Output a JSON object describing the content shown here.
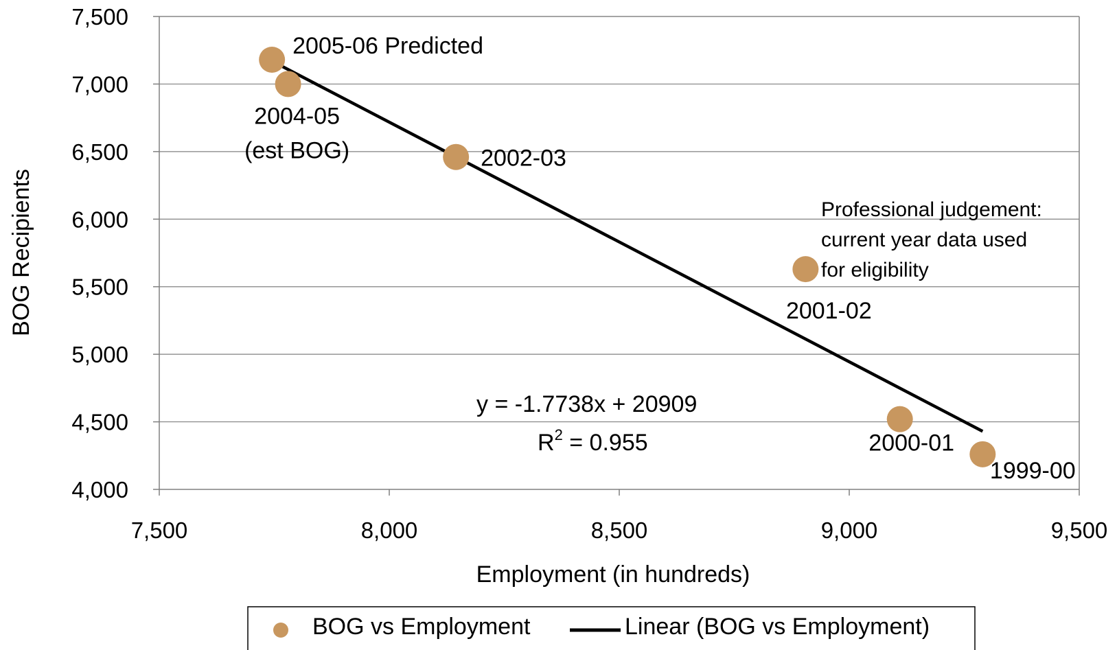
{
  "chart_data": {
    "type": "scatter",
    "xlabel": "Employment (in hundreds)",
    "ylabel": "BOG Recipients",
    "xlim": [
      7500,
      9500
    ],
    "ylim": [
      4000,
      7500
    ],
    "x_ticks": [
      "7,500",
      "8,000",
      "8,500",
      "9,000",
      "9,500"
    ],
    "y_ticks": [
      "7,500",
      "7,000",
      "6,500",
      "6,000",
      "5,500",
      "5,000",
      "4,500",
      "4,000"
    ],
    "grid": "horizontal",
    "marker_color": "#C8975F",
    "line_color": "#000000",
    "series": [
      {
        "name": "BOG vs Employment",
        "points": [
          {
            "x": 7745,
            "y": 7180,
            "label": "2005-06 Predicted"
          },
          {
            "x": 7780,
            "y": 7000,
            "label": "2004-05 (est BOG)",
            "label_lines": [
              "2004-05",
              "(est BOG)"
            ]
          },
          {
            "x": 8145,
            "y": 6460,
            "label": "2002-03"
          },
          {
            "x": 8905,
            "y": 5630,
            "label": "2001-02"
          },
          {
            "x": 9110,
            "y": 4520,
            "label": "2000-01"
          },
          {
            "x": 9290,
            "y": 4260,
            "label": "1999-00"
          }
        ]
      }
    ],
    "trendline": {
      "name": "Linear (BOG vs Employment)",
      "type": "linear",
      "x_range": [
        7745,
        9290
      ],
      "y_range": [
        7170,
        4430
      ]
    },
    "annotations": {
      "equation": "y = -1.7738x + 20909",
      "r2_prefix": "R",
      "r2_sup": "2",
      "r2_value": " = 0.955",
      "note_lines": [
        "Professional judgement:",
        "current year data used",
        "for eligibility"
      ]
    },
    "legend": {
      "placement": "bottom",
      "items": [
        "BOG vs Employment",
        "Linear (BOG vs Employment)"
      ]
    }
  }
}
